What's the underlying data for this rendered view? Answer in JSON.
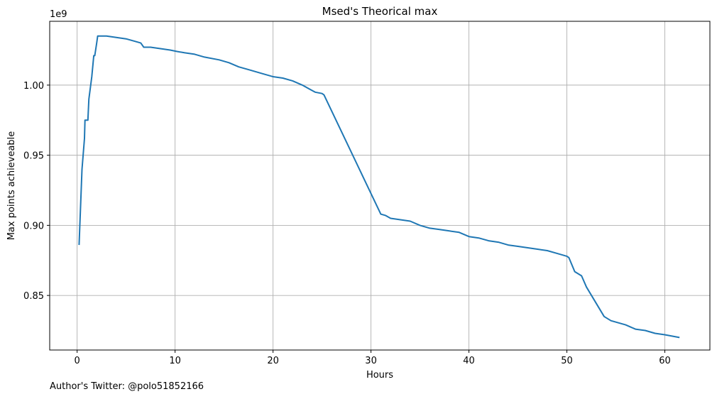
{
  "chart_data": {
    "type": "line",
    "title": "Msed's Theorical max",
    "xlabel": "Hours",
    "ylabel": "Max points achieveable",
    "y_scale_label": "1e9",
    "xlim": [
      -2.8,
      64.6
    ],
    "ylim": [
      0.8111,
      1.0455
    ],
    "grid": true,
    "x_ticks": [
      0,
      10,
      20,
      30,
      40,
      50,
      60
    ],
    "x_tick_labels": [
      "0",
      "10",
      "20",
      "30",
      "40",
      "50",
      "60"
    ],
    "y_ticks": [
      0.85,
      0.9,
      0.95,
      1.0
    ],
    "y_tick_labels": [
      "0.85",
      "0.90",
      "0.95",
      "1.00"
    ],
    "line_color": "#1f77b4",
    "series": [
      {
        "x": [
          0.2,
          0.5,
          0.75,
          0.8,
          1.1,
          1.2,
          1.5,
          1.7,
          1.8,
          2.0,
          2.1,
          3.0,
          4.0,
          5.0,
          6.0,
          6.5,
          6.8,
          7.5,
          8.5,
          9.5,
          10.2,
          11.0,
          12.0,
          13.0,
          14.5,
          15.5,
          16.5,
          17.5,
          19.0,
          20.0,
          21.0,
          22.0,
          23.0,
          23.5,
          24.3,
          25.0,
          25.2,
          31.0,
          31.5,
          32.0,
          33.0,
          34.0,
          35.0,
          36.0,
          37.0,
          38.0,
          39.0,
          40.0,
          41.0,
          42.0,
          43.0,
          44.0,
          45.0,
          46.0,
          47.0,
          48.0,
          49.0,
          50.0,
          50.2,
          50.8,
          51.5,
          52.0,
          53.8,
          54.5,
          56.0,
          57.0,
          58.0,
          59.0,
          60.0,
          61.5
        ],
        "y": [
          0.886,
          0.94,
          0.962,
          0.975,
          0.975,
          0.99,
          1.006,
          1.021,
          1.021,
          1.03,
          1.035,
          1.035,
          1.034,
          1.033,
          1.031,
          1.03,
          1.027,
          1.027,
          1.026,
          1.025,
          1.024,
          1.023,
          1.022,
          1.02,
          1.018,
          1.016,
          1.013,
          1.011,
          1.008,
          1.006,
          1.005,
          1.003,
          1.0,
          0.998,
          0.995,
          0.994,
          0.993,
          0.908,
          0.907,
          0.905,
          0.904,
          0.903,
          0.9,
          0.898,
          0.897,
          0.896,
          0.895,
          0.892,
          0.891,
          0.889,
          0.888,
          0.886,
          0.885,
          0.884,
          0.883,
          0.882,
          0.88,
          0.878,
          0.877,
          0.867,
          0.864,
          0.856,
          0.835,
          0.832,
          0.829,
          0.826,
          0.825,
          0.823,
          0.822,
          0.82
        ]
      }
    ]
  },
  "footer": {
    "author": "Author's Twitter: @polo51852166"
  }
}
